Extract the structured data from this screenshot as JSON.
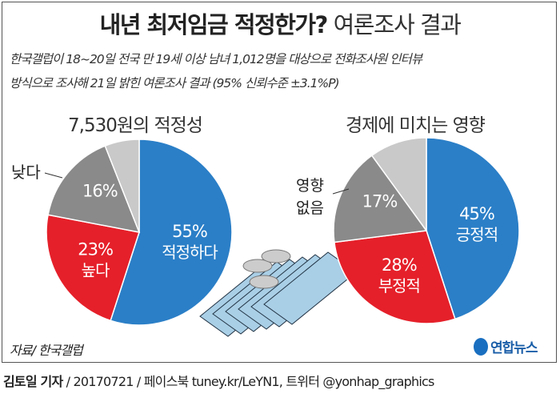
{
  "title_bold": "내년 최저임금 적정한가?",
  "title_light": "여론조사 결과",
  "subtitle_line1": "한국갤럽이 18~20일 전국 만 19세 이상 남녀 1,012명을 대상으로 전화조사원 인터뷰",
  "subtitle_line2": "방식으로 조사해 21일 밝힌 여론조사 결과 (95% 신뢰수준 ±3.1%P)",
  "source": "자료/ 한국갤럽",
  "logo_text": "연합뉴스",
  "footer": {
    "author": "김토일 기자",
    "rest": " / 20170721 / 페이스북 tuney.kr/LeYN1, 트위터 @yonhap_graphics"
  },
  "colors": {
    "blue": "#2b7fc7",
    "red": "#e5202a",
    "gray": "#8a8a8a",
    "light": "#c9c9c9"
  },
  "chart_data": [
    {
      "type": "pie",
      "title": "7,530원의 적정성",
      "slices": [
        {
          "label": "적정하다",
          "value": 55,
          "text": "55%",
          "color": "#2b7fc7"
        },
        {
          "label": "높다",
          "value": 23,
          "text": "23%",
          "color": "#e5202a"
        },
        {
          "label": "낮다",
          "value": 16,
          "text": "16%",
          "color": "#8a8a8a"
        },
        {
          "label": "",
          "value": 6,
          "text": "",
          "color": "#c9c9c9"
        }
      ]
    },
    {
      "type": "pie",
      "title": "경제에 미치는 영향",
      "slices": [
        {
          "label": "긍정적",
          "value": 45,
          "text": "45%",
          "color": "#2b7fc7"
        },
        {
          "label": "부정적",
          "value": 28,
          "text": "28%",
          "color": "#e5202a"
        },
        {
          "label": "영향 없음",
          "value": 17,
          "text": "17%",
          "color": "#8a8a8a"
        },
        {
          "label": "",
          "value": 10,
          "text": "",
          "color": "#c9c9c9"
        }
      ]
    }
  ]
}
